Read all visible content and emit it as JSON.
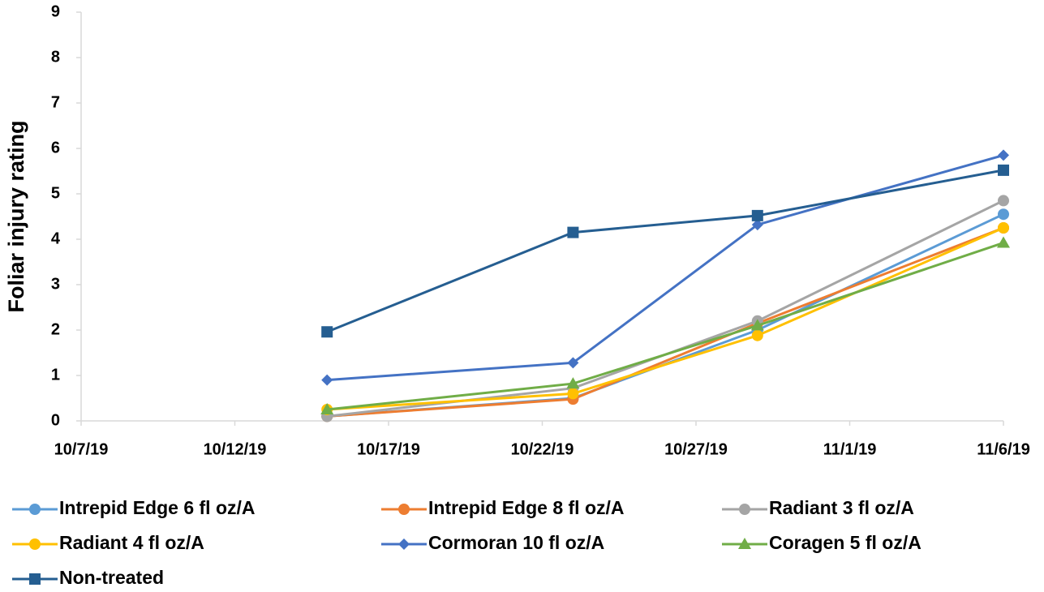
{
  "chart_data": {
    "type": "line",
    "y_label": "Foliar injury rating",
    "x": [
      "10/15/19",
      "10/23/19",
      "10/29/19",
      "11/6/19"
    ],
    "xlim": [
      "10/7/19",
      "11/6/19"
    ],
    "xticks": [
      "10/7/19",
      "10/12/19",
      "10/17/19",
      "10/22/19",
      "10/27/19",
      "11/1/19",
      "11/6/19"
    ],
    "ylim": [
      0,
      9
    ],
    "yticks": [
      0,
      1,
      2,
      3,
      4,
      5,
      6,
      7,
      8,
      9
    ],
    "grid": false,
    "legend": "bottom",
    "series": [
      {
        "name": "Intrepid Edge 6 fl oz/A",
        "color": "#5b9bd5",
        "marker": "circle",
        "values": [
          0.1,
          0.5,
          2.0,
          4.55
        ]
      },
      {
        "name": "Intrepid Edge 8 fl oz/A",
        "color": "#ed7d31",
        "marker": "circle",
        "values": [
          0.1,
          0.48,
          2.15,
          4.25
        ]
      },
      {
        "name": "Radiant 3 fl oz/A",
        "color": "#a5a5a5",
        "marker": "circle",
        "values": [
          0.1,
          0.72,
          2.2,
          4.85
        ]
      },
      {
        "name": "Radiant 4 fl oz/A",
        "color": "#ffc000",
        "marker": "circle",
        "values": [
          0.25,
          0.6,
          1.88,
          4.25
        ]
      },
      {
        "name": "Cormoran 10 fl oz/A",
        "color": "#4472c4",
        "marker": "diamond",
        "values": [
          0.9,
          1.28,
          4.32,
          5.85
        ]
      },
      {
        "name": "Coragen 5 fl oz/A",
        "color": "#70ad47",
        "marker": "triangle",
        "values": [
          0.25,
          0.82,
          2.1,
          3.92
        ]
      },
      {
        "name": "Non-treated",
        "color": "#255e91",
        "marker": "square",
        "values": [
          1.96,
          4.15,
          4.52,
          5.52
        ]
      }
    ]
  }
}
